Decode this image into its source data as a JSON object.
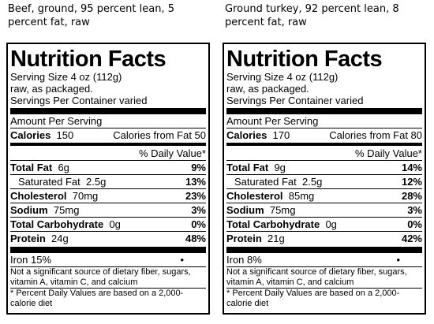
{
  "labels": [
    {
      "caption": "Beef, ground, 95 percent lean, 5 percent fat, raw",
      "title": "Nutrition Facts",
      "serving_size": "Serving Size 4 oz (112g)",
      "raw_note": "raw, as packaged.",
      "servings_per_container": "Servings Per Container varied",
      "amount_per_serving": "Amount Per Serving",
      "calories_label": "Calories",
      "calories_value": "150",
      "calories_from_fat": "Calories from Fat 50",
      "dv_header": "% Daily Value*",
      "nutrients": [
        {
          "name": "Total Fat",
          "amount": "6g",
          "dv": "9%"
        },
        {
          "name": "Saturated Fat",
          "amount": "2.5g",
          "dv": "13%"
        },
        {
          "name": "Cholesterol",
          "amount": "70mg",
          "dv": "23%"
        },
        {
          "name": "Sodium",
          "amount": "75mg",
          "dv": "3%"
        },
        {
          "name": "Total Carbohydrate",
          "amount": "0g",
          "dv": "0%"
        },
        {
          "name": "Protein",
          "amount": "24g",
          "dv": "48%"
        }
      ],
      "iron": "Iron 15%",
      "bullet": "•",
      "not_significant": "Not a significant source of dietary fiber, sugars, vitamin A, vitamin C, and calcium",
      "footnote": "* Percent Daily Values are based on a 2,000-calorie diet"
    },
    {
      "caption": "Ground turkey, 92 percent lean, 8 percent fat, raw",
      "title": "Nutrition Facts",
      "serving_size": "Serving Size 4 oz (112g)",
      "raw_note": "raw, as packaged.",
      "servings_per_container": "Servings Per Container varied",
      "amount_per_serving": "Amount Per Serving",
      "calories_label": "Calories",
      "calories_value": "170",
      "calories_from_fat": "Calories from Fat 80",
      "dv_header": "% Daily Value*",
      "nutrients": [
        {
          "name": "Total Fat",
          "amount": "9g",
          "dv": "14%"
        },
        {
          "name": "Saturated Fat",
          "amount": "2.5g",
          "dv": "12%"
        },
        {
          "name": "Cholesterol",
          "amount": "85mg",
          "dv": "28%"
        },
        {
          "name": "Sodium",
          "amount": "75mg",
          "dv": "3%"
        },
        {
          "name": "Total Carbohydrate",
          "amount": "0g",
          "dv": "0%"
        },
        {
          "name": "Protein",
          "amount": "21g",
          "dv": "42%"
        }
      ],
      "iron": "Iron 8%",
      "bullet": "•",
      "not_significant": "Not a significant source of dietary fiber, sugars, vitamin A, vitamin C, and calcium",
      "footnote": "* Percent Daily Values are based on a 2,000-calorie diet"
    }
  ]
}
